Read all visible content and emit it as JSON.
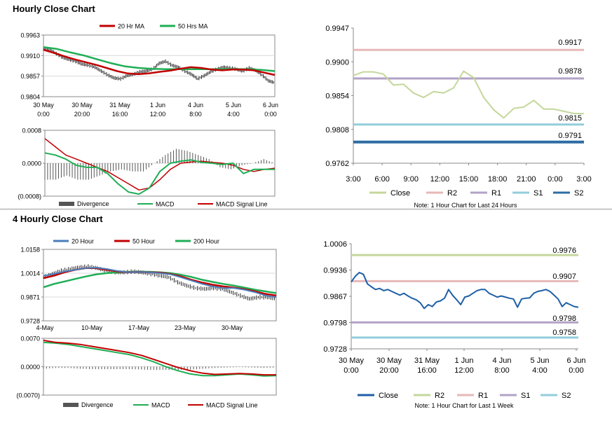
{
  "sections": {
    "hourly": {
      "title": "Hourly Close Chart"
    },
    "four_hourly": {
      "title": "4 Hourly Close Chart"
    }
  },
  "colors": {
    "close_dark": "#1f5fa6",
    "ma20_hourly": "#c00000",
    "ma50": "#1fae55",
    "ma20_4h": "#4a7ebb",
    "ma50_4h": "#c00000",
    "ma200_4h": "#1fae55",
    "macd": "#1fae55",
    "signal": "#c00000",
    "divergence": "#555555",
    "close_light": "#c4d79b",
    "r2": "#e6b8b7",
    "r1": "#b3a2c7",
    "s1": "#92cddc",
    "s2": "#2e6da4",
    "grid": "#d9d9d9"
  },
  "chart_data": [
    {
      "id": "hourly_price",
      "type": "line",
      "title": "",
      "legend": [
        {
          "key": "ma20",
          "label": "20 Hr MA",
          "color": "#c00000"
        },
        {
          "key": "ma50",
          "label": "50 Hrs MA",
          "color": "#1fae55"
        }
      ],
      "yticks": [
        "0.9963",
        "0.9910",
        "0.9857",
        "0.9804"
      ],
      "ylim": [
        0.9804,
        0.9963
      ],
      "xticks": [
        [
          "30 May",
          "0:00"
        ],
        [
          "30 May",
          "20:00"
        ],
        [
          "31 May",
          "16:00"
        ],
        [
          "1 Jun",
          "12:00"
        ],
        [
          "4 Jun",
          "8:00"
        ],
        [
          "5 Jun",
          "4:00"
        ],
        [
          "6 Jun",
          "0:00"
        ]
      ],
      "series": [
        {
          "name": "Close (bars)",
          "values": [
            0.9928,
            0.9925,
            0.9915,
            0.9905,
            0.99,
            0.9895,
            0.9888,
            0.9885,
            0.988,
            0.987,
            0.986,
            0.9852,
            0.985,
            0.9858,
            0.9862,
            0.9868,
            0.987,
            0.9875,
            0.989,
            0.9895,
            0.9885,
            0.988,
            0.987,
            0.9862,
            0.985,
            0.9858,
            0.9868,
            0.9875,
            0.988,
            0.9878,
            0.9875,
            0.987,
            0.9878,
            0.9872,
            0.986,
            0.9845,
            0.984
          ]
        },
        {
          "name": "20 Hr MA",
          "values": [
            0.9925,
            0.9917,
            0.9908,
            0.99,
            0.9893,
            0.9886,
            0.9878,
            0.987,
            0.9864,
            0.9862,
            0.9864,
            0.9868,
            0.9871,
            0.9876,
            0.988,
            0.9878,
            0.9874,
            0.9872,
            0.9874,
            0.9874,
            0.9872,
            0.9866,
            0.986
          ]
        },
        {
          "name": "50 Hrs MA",
          "values": [
            0.9932,
            0.9927,
            0.9918,
            0.991,
            0.99,
            0.989,
            0.9882,
            0.9878,
            0.9876,
            0.9875,
            0.9875,
            0.9875,
            0.9875,
            0.9875,
            0.9875,
            0.9875,
            0.9873,
            0.987
          ]
        }
      ]
    },
    {
      "id": "hourly_macd",
      "type": "line",
      "legend": [
        {
          "key": "div",
          "label": "Divergence",
          "color": "#555555"
        },
        {
          "key": "macd",
          "label": "MACD",
          "color": "#1fae55"
        },
        {
          "key": "signal",
          "label": "MACD Signal Line",
          "color": "#c00000"
        }
      ],
      "yticks": [
        "0.0008",
        "0.0000",
        "(0.0008)"
      ],
      "ylim": [
        -0.0008,
        0.0008
      ],
      "series": [
        {
          "name": "MACD",
          "values": [
            0.00025,
            0.0002,
            0.0001,
            -5e-05,
            -0.0001,
            -0.0001,
            -0.00025,
            -0.0005,
            -0.0007,
            -0.00075,
            -0.0006,
            -0.0002,
            0.0,
            5e-05,
            8e-05,
            2e-05,
            0.0,
            -3e-05,
            0.0,
            -0.00025,
            -0.00015,
            -0.00015,
            -0.00015
          ]
        },
        {
          "name": "MACD Signal Line",
          "values": [
            0.0006,
            0.0004,
            0.0002,
            0.0001,
            0.0,
            -0.0001,
            -0.0002,
            -0.00035,
            -0.0005,
            -0.00065,
            -0.0006,
            -0.0004,
            -0.00015,
            0.0,
            3e-05,
            5e-05,
            2e-05,
            0.0,
            -5e-05,
            -0.00015,
            -0.0002,
            -0.00015,
            -0.00012
          ]
        },
        {
          "name": "Divergence",
          "values": [
            -0.0004,
            -0.0004,
            -0.0003,
            -0.0004,
            -0.0004,
            -0.0003,
            -0.0002,
            -0.00015,
            -0.0002,
            -0.0002,
            0.0,
            0.0002,
            0.00035,
            0.0003,
            0.0002,
            0.0001,
            -0.0001,
            -0.00015,
            -5e-05,
            0.0,
            0.0001,
            0.0
          ]
        }
      ]
    },
    {
      "id": "hourly_pivots",
      "type": "line",
      "yticks": [
        "0.9947",
        "0.9900",
        "0.9854",
        "0.9808",
        "0.9762"
      ],
      "ylim": [
        0.9762,
        0.9947
      ],
      "xticks": [
        "3:00",
        "6:00",
        "9:00",
        "12:00",
        "15:00",
        "18:00",
        "21:00",
        "0:00",
        "3:00"
      ],
      "series": [
        {
          "name": "Close",
          "color": "#c4d79b",
          "values": [
            0.9882,
            0.9887,
            0.9887,
            0.9884,
            0.9869,
            0.987,
            0.9858,
            0.9852,
            0.986,
            0.9858,
            0.9865,
            0.9888,
            0.9879,
            0.9852,
            0.9835,
            0.9824,
            0.9837,
            0.9839,
            0.9848,
            0.9836,
            0.9836,
            0.9833,
            0.983,
            0.983
          ]
        },
        {
          "name": "R2",
          "color": "#e6b8b7",
          "level": 0.9917
        },
        {
          "name": "R1",
          "color": "#b3a2c7",
          "level": 0.9878
        },
        {
          "name": "S1",
          "color": "#92cddc",
          "level": 0.9815
        },
        {
          "name": "S2",
          "color": "#2e6da4",
          "level": 0.9791
        }
      ],
      "level_labels": [
        "0.9917",
        "0.9878",
        "0.9815",
        "0.9791"
      ],
      "legend": [
        "Close",
        "R2",
        "R1",
        "S1",
        "S2"
      ],
      "note": "Note: 1 Hour Chart for Last 24 Hours"
    },
    {
      "id": "four_hourly_price",
      "type": "line",
      "legend": [
        {
          "key": "ma20",
          "label": "20 Hour",
          "color": "#4a7ebb"
        },
        {
          "key": "ma50",
          "label": "50 Hour",
          "color": "#c00000"
        },
        {
          "key": "ma200",
          "label": "200 Hour",
          "color": "#1fae55"
        }
      ],
      "yticks": [
        "1.0158",
        "1.0014",
        "0.9871",
        "0.9728"
      ],
      "ylim": [
        0.9728,
        1.0158
      ],
      "xticks": [
        "4-May",
        "10-May",
        "17-May",
        "23-May",
        "30-May"
      ],
      "series": [
        {
          "name": "Close (bars)",
          "values": [
            0.999,
            1.001,
            1.003,
            1.004,
            1.005,
            1.0055,
            1.0045,
            1.003,
            1.002,
            1.002,
            1.0025,
            1.002,
            1.001,
            1.0,
            0.999,
            0.996,
            0.994,
            0.9925,
            0.992,
            0.9925,
            0.992,
            0.99,
            0.988,
            0.986,
            0.987,
            0.987,
            0.986
          ]
        },
        {
          "name": "20 Hour",
          "values": [
            1.0,
            1.001,
            1.0025,
            1.0035,
            1.0045,
            1.0048,
            1.004,
            1.0028,
            1.002,
            1.0022,
            1.002,
            1.0015,
            1.0008,
            0.999,
            0.997,
            0.995,
            0.9935,
            0.9925,
            0.9925,
            0.9915,
            0.99,
            0.988,
            0.987
          ]
        },
        {
          "name": "50 Hour",
          "values": [
            0.9985,
            1.0,
            1.002,
            1.0035,
            1.0045,
            1.0045,
            1.0035,
            1.0025,
            1.002,
            1.0022,
            1.002,
            1.0018,
            1.001,
            0.9995,
            0.9975,
            0.9958,
            0.9945,
            0.9935,
            0.9928,
            0.9918,
            0.9905,
            0.989,
            0.988
          ]
        },
        {
          "name": "200 Hour",
          "values": [
            0.993,
            0.995,
            0.9965,
            0.998,
            0.9995,
            1.0008,
            1.0015,
            1.002,
            1.0022,
            1.0023,
            1.0023,
            1.002,
            1.0015,
            1.0005,
            0.9992,
            0.9975,
            0.9962,
            0.995,
            0.994,
            0.9928,
            0.9915,
            0.9905,
            0.9895
          ]
        }
      ]
    },
    {
      "id": "four_hourly_macd",
      "type": "line",
      "legend": [
        {
          "key": "div",
          "label": "Divergence",
          "color": "#555555"
        },
        {
          "key": "macd",
          "label": "MACD",
          "color": "#1fae55"
        },
        {
          "key": "signal",
          "label": "MACD Signal Line",
          "color": "#c00000"
        }
      ],
      "yticks": [
        "0.0070",
        "0.0000",
        "(0.0070)"
      ],
      "ylim": [
        -0.007,
        0.007
      ],
      "series": [
        {
          "name": "MACD",
          "values": [
            0.006,
            0.0058,
            0.0055,
            0.005,
            0.0045,
            0.004,
            0.0035,
            0.003,
            0.0022,
            0.0012,
            0.0,
            -0.001,
            -0.0018,
            -0.0022,
            -0.0022,
            -0.002,
            -0.0018,
            -0.002,
            -0.0023,
            -0.0022
          ]
        },
        {
          "name": "MACD Signal Line",
          "values": [
            0.0065,
            0.006,
            0.0058,
            0.0055,
            0.005,
            0.0045,
            0.004,
            0.0035,
            0.0028,
            0.0018,
            0.0008,
            -0.0002,
            -0.001,
            -0.0016,
            -0.0019,
            -0.0018,
            -0.0017,
            -0.0018,
            -0.002,
            -0.002
          ]
        },
        {
          "name": "Divergence",
          "values": [
            -0.0005,
            -0.0003,
            -0.0003,
            -0.0005,
            -0.0006,
            -0.0006,
            -0.0006,
            -0.0006,
            -0.0007,
            -0.0008,
            -0.0008,
            -0.0008,
            -0.0007,
            -0.0005,
            -0.0003,
            -0.0002,
            -0.0001,
            -0.0002,
            -0.0003,
            -0.0002
          ]
        }
      ]
    },
    {
      "id": "four_hourly_pivots",
      "type": "line",
      "yticks": [
        "1.0006",
        "0.9936",
        "0.9867",
        "0.9798",
        "0.9728"
      ],
      "ylim": [
        0.9728,
        1.0006
      ],
      "xticks": [
        [
          "30 May",
          "0:00"
        ],
        [
          "30 May",
          "20:00"
        ],
        [
          "31 May",
          "16:00"
        ],
        [
          "1 Jun",
          "12:00"
        ],
        [
          "4 Jun",
          "8:00"
        ],
        [
          "5 Jun",
          "4:00"
        ],
        [
          "6 Jun",
          "0:00"
        ]
      ],
      "series": [
        {
          "name": "Close",
          "color": "#1f5fa6",
          "values": [
            0.9905,
            0.992,
            0.993,
            0.9925,
            0.99,
            0.9892,
            0.9885,
            0.9888,
            0.9882,
            0.9885,
            0.988,
            0.9875,
            0.987,
            0.9875,
            0.9868,
            0.9862,
            0.9858,
            0.985,
            0.9835,
            0.9845,
            0.984,
            0.9852,
            0.9855,
            0.9862,
            0.9885,
            0.987,
            0.9858,
            0.9845,
            0.9865,
            0.9868,
            0.9875,
            0.9882,
            0.9885,
            0.9885,
            0.9875,
            0.987,
            0.9865,
            0.9868,
            0.9865,
            0.9862,
            0.986,
            0.9838,
            0.986,
            0.9862,
            0.9863,
            0.9875,
            0.988,
            0.9882,
            0.9885,
            0.988,
            0.987,
            0.986,
            0.984,
            0.985,
            0.9845,
            0.984,
            0.9838
          ]
        },
        {
          "name": "R2",
          "color": "#c4d79b",
          "level": 0.9976
        },
        {
          "name": "R1",
          "color": "#e6b8b7",
          "level": 0.9907
        },
        {
          "name": "S1",
          "color": "#b3a2c7",
          "level": 0.9798
        },
        {
          "name": "S2",
          "color": "#92cddc",
          "level": 0.9758
        }
      ],
      "level_labels": [
        "0.9976",
        "0.9907",
        "0.9798",
        "0.9758"
      ],
      "legend": [
        "Close",
        "R2",
        "R1",
        "S1",
        "S2"
      ],
      "note": "Note: 1 Hour Chart for Last 1 Week"
    }
  ]
}
